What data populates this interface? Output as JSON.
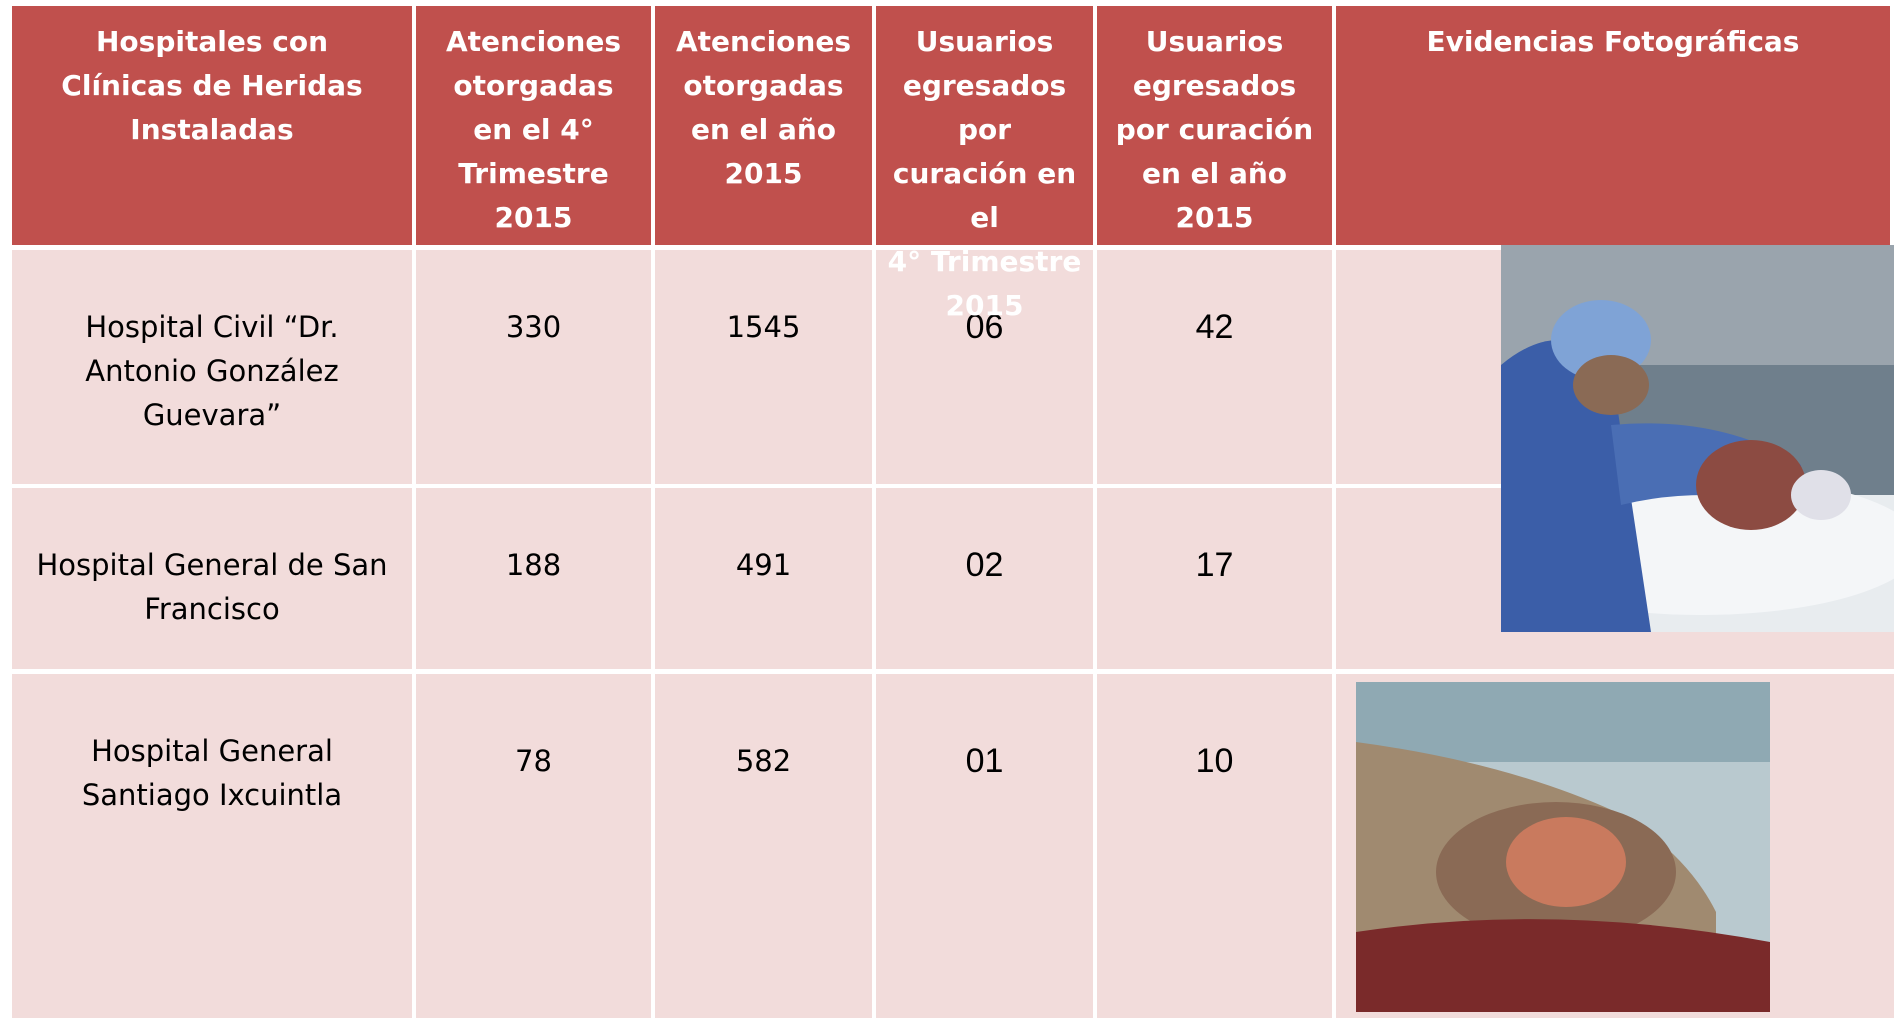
{
  "table": {
    "header": [
      [
        "Hospitales con",
        "Clínicas de Heridas",
        "Instaladas"
      ],
      [
        "Atenciones",
        "otorgadas",
        "en el 4°",
        "Trimestre",
        "2015"
      ],
      [
        "Atenciones",
        "otorgadas",
        "en el año",
        "2015"
      ],
      [
        "Usuarios",
        "egresados por",
        "curación en el",
        "4° Trimestre",
        "2015"
      ],
      [
        "Usuarios",
        "egresados",
        "por curación",
        "en el año",
        "2015"
      ],
      [
        "Evidencias  Fotográficas"
      ]
    ],
    "rows": [
      [
        [
          "Hospital Civil “Dr.",
          "Antonio González",
          "Guevara”"
        ],
        "330",
        "1545",
        "06",
        "42"
      ],
      [
        [
          "Hospital General de San",
          "Francisco"
        ],
        "188",
        "491",
        "02",
        "17"
      ],
      [
        [
          "Hospital General",
          "Santiago Ixcuintla"
        ],
        "78",
        "582",
        "01",
        "10"
      ]
    ]
  }
}
